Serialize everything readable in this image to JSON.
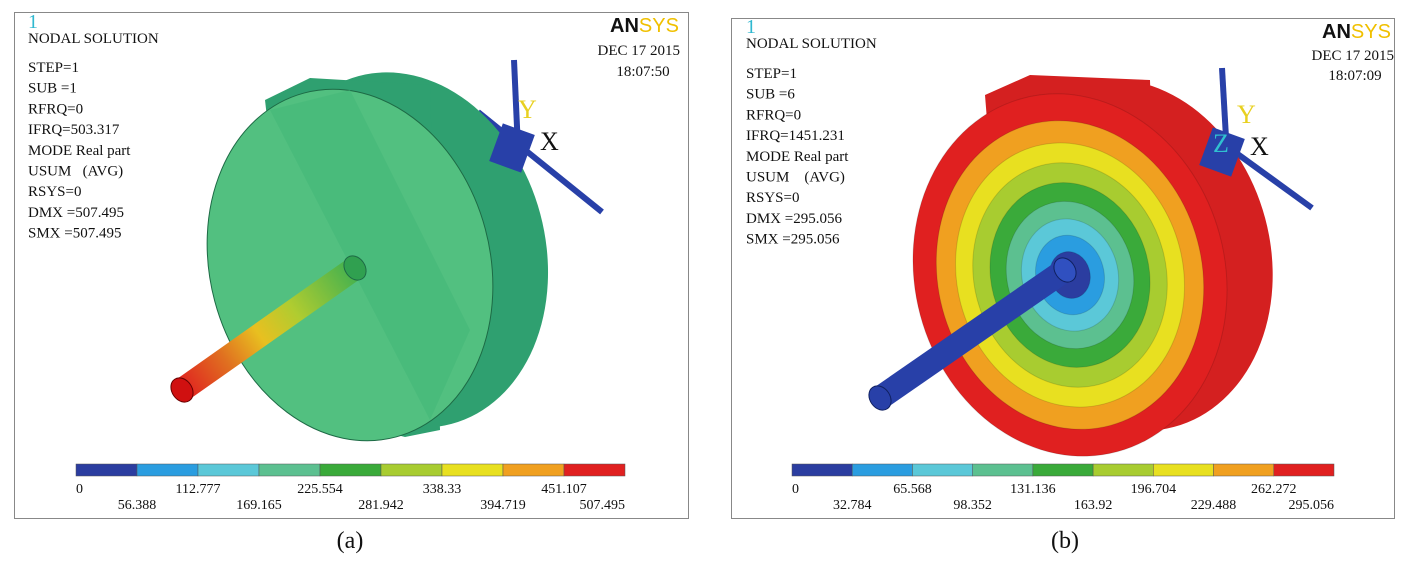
{
  "panels": [
    {
      "id": "1",
      "title": "NODAL SOLUTION",
      "info": [
        "STEP=1",
        "SUB =1",
        "RFRQ=0",
        "IFRQ=503.317",
        "MODE Real part",
        "USUM   (AVG)",
        "RSYS=0",
        "DMX =507.495",
        "SMX =507.495"
      ],
      "date": "DEC 17 2015",
      "time": "18:07:50",
      "logo_prefix": "AN",
      "logo_suffix": "SYS",
      "triad": [
        "Y",
        "X"
      ],
      "legend_upper": [
        "0",
        "112.777",
        "225.554",
        "338.33",
        "451.107"
      ],
      "legend_lower": [
        "56.388",
        "169.165",
        "281.942",
        "394.719",
        "507.495"
      ],
      "caption": "(a)"
    },
    {
      "id": "1",
      "title": "NODAL SOLUTION",
      "info": [
        "STEP=1",
        "SUB =6",
        "RFRQ=0",
        "IFRQ=1451.231",
        "MODE Real part",
        "USUM    (AVG)",
        "RSYS=0",
        "DMX =295.056",
        "SMX =295.056"
      ],
      "date": "DEC 17 2015",
      "time": "18:07:09",
      "logo_prefix": "AN",
      "logo_suffix": "SYS",
      "triad": [
        "Y",
        "Z",
        "X"
      ],
      "legend_upper": [
        "0",
        "65.568",
        "131.136",
        "196.704",
        "262.272"
      ],
      "legend_lower": [
        "32.784",
        "98.352",
        "163.92",
        "229.488",
        "295.056"
      ],
      "caption": "(b)"
    }
  ]
}
